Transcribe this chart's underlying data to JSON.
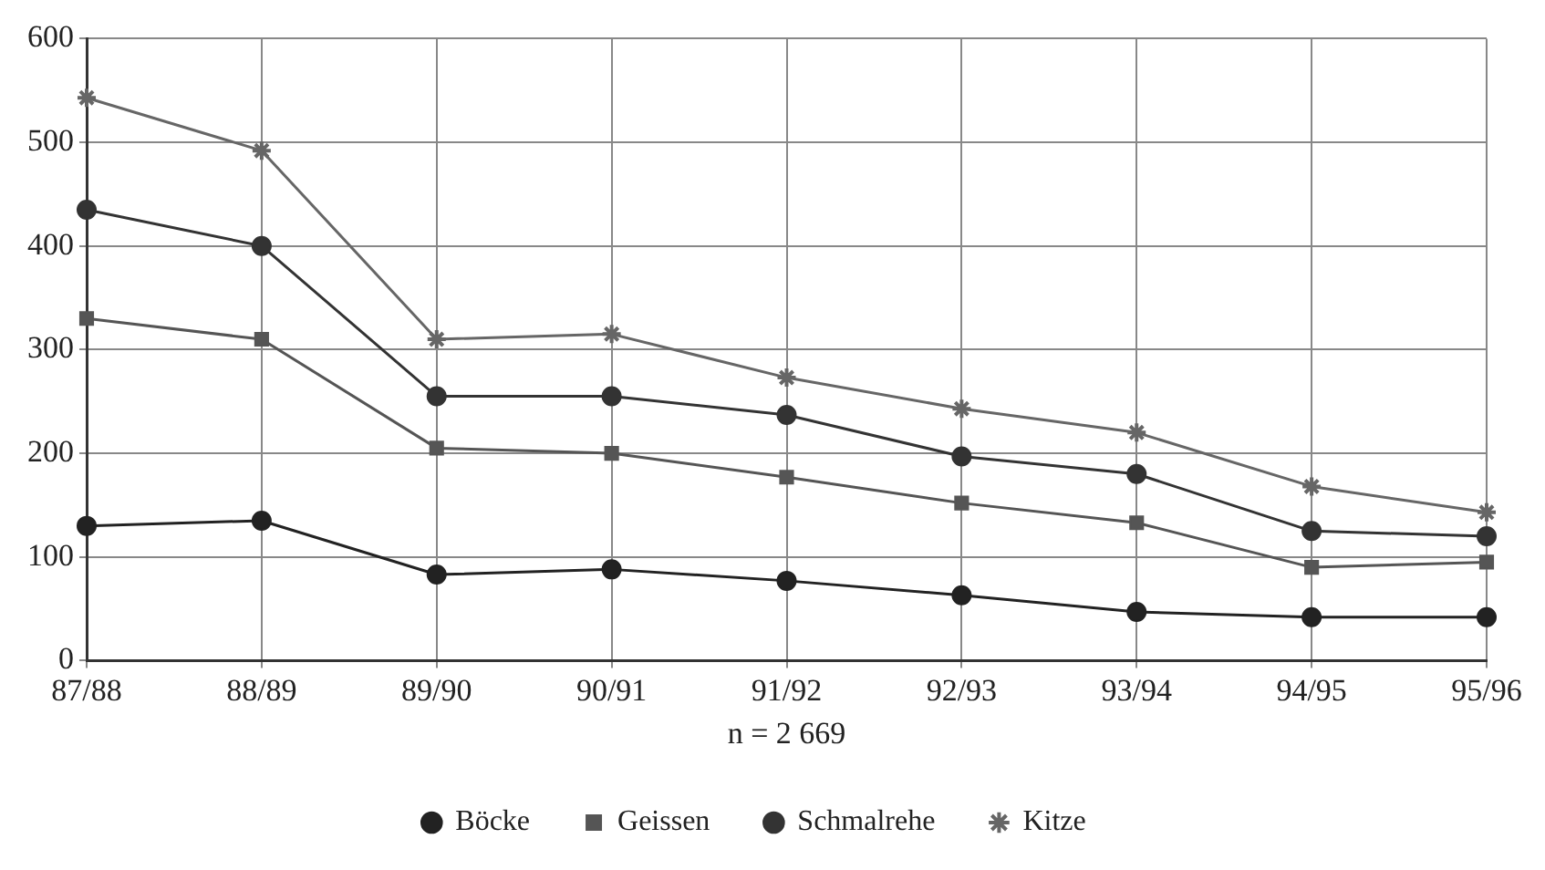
{
  "chart_data": {
    "type": "line",
    "xlabel": "n = 2 669",
    "categories": [
      "87/88",
      "88/89",
      "89/90",
      "90/91",
      "91/92",
      "92/93",
      "93/94",
      "94/95",
      "95/96"
    ],
    "series": [
      {
        "name": "Böcke",
        "color": "#222222",
        "marker": "circle",
        "values": [
          130,
          135,
          83,
          88,
          77,
          63,
          47,
          42,
          42
        ]
      },
      {
        "name": "Geissen",
        "color": "#555555",
        "marker": "square",
        "values": [
          330,
          310,
          205,
          200,
          177,
          152,
          133,
          90,
          95
        ]
      },
      {
        "name": "Schmalrehe",
        "color": "#333333",
        "marker": "circle",
        "values": [
          435,
          400,
          255,
          255,
          237,
          197,
          180,
          125,
          120
        ]
      },
      {
        "name": "Kitze",
        "color": "#666666",
        "marker": "cross",
        "values": [
          543,
          492,
          310,
          315,
          273,
          243,
          220,
          168,
          143
        ]
      }
    ],
    "ylim": [
      0,
      600
    ],
    "yticks": [
      0,
      100,
      200,
      300,
      400,
      500,
      600
    ],
    "grid": true,
    "legend": "bottom",
    "line_style": "solid"
  }
}
